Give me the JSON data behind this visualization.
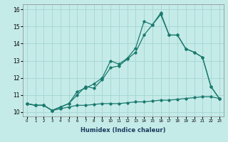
{
  "title": "",
  "xlabel": "Humidex (Indice chaleur)",
  "ylabel": "",
  "background_color": "#c5ebe8",
  "grid_color": "#a8d8d4",
  "line_color": "#1a7a6e",
  "xlim": [
    -0.5,
    23.5
  ],
  "ylim": [
    9.75,
    16.3
  ],
  "x_ticks": [
    0,
    1,
    2,
    3,
    4,
    5,
    6,
    7,
    8,
    9,
    10,
    11,
    12,
    13,
    14,
    15,
    16,
    17,
    18,
    19,
    20,
    21,
    22,
    23
  ],
  "y_ticks": [
    10,
    11,
    12,
    13,
    14,
    15,
    16
  ],
  "series": [
    {
      "x": [
        0,
        1,
        2,
        3,
        4,
        5,
        6,
        7,
        8,
        9,
        10,
        11,
        12,
        13,
        14,
        15,
        16,
        17,
        18,
        19,
        20,
        21,
        22,
        23
      ],
      "y": [
        10.5,
        10.4,
        10.4,
        10.1,
        10.2,
        10.3,
        10.4,
        10.4,
        10.45,
        10.5,
        10.5,
        10.5,
        10.55,
        10.6,
        10.6,
        10.65,
        10.7,
        10.7,
        10.75,
        10.8,
        10.85,
        10.9,
        10.9,
        10.8
      ]
    },
    {
      "x": [
        0,
        1,
        2,
        3,
        4,
        5,
        6,
        7,
        8,
        9,
        10,
        11,
        12,
        13,
        14,
        15,
        16,
        17,
        18,
        19,
        20,
        21,
        22,
        23
      ],
      "y": [
        10.5,
        10.4,
        10.4,
        10.1,
        10.3,
        10.5,
        11.0,
        11.5,
        11.4,
        11.9,
        12.6,
        12.7,
        13.1,
        13.5,
        14.5,
        15.1,
        15.7,
        14.5,
        14.5,
        13.7,
        13.5,
        13.2,
        11.5,
        10.8
      ]
    },
    {
      "x": [
        0,
        1,
        2,
        3,
        4,
        5,
        6,
        7,
        8,
        9,
        10,
        11,
        12,
        13,
        14,
        15,
        16,
        17,
        18,
        19,
        20,
        21,
        22,
        23
      ],
      "y": [
        10.5,
        10.4,
        10.4,
        10.1,
        10.3,
        10.5,
        11.2,
        11.4,
        11.65,
        12.0,
        13.0,
        12.8,
        13.15,
        13.75,
        15.3,
        15.1,
        15.8,
        14.5,
        14.5,
        13.7,
        13.5,
        13.2,
        11.5,
        10.8
      ]
    }
  ]
}
